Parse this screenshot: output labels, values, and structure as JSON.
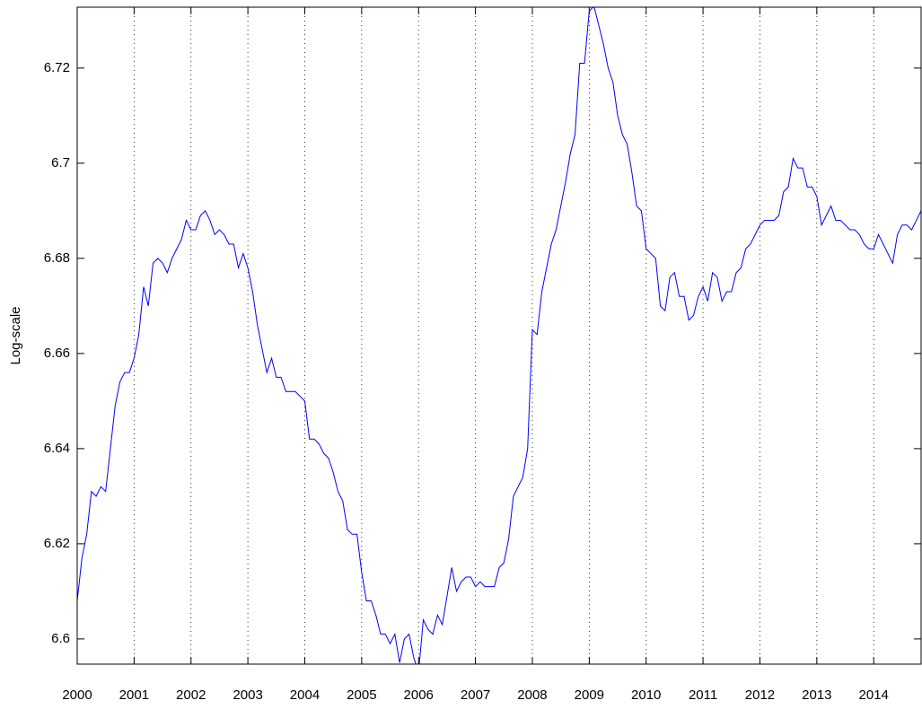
{
  "chart_data": {
    "type": "line",
    "y_label": "Log-scale",
    "x": [
      2000,
      2000.083,
      2000.167,
      2000.25,
      2000.333,
      2000.417,
      2000.5,
      2000.583,
      2000.667,
      2000.75,
      2000.833,
      2000.917,
      2001,
      2001.083,
      2001.167,
      2001.25,
      2001.333,
      2001.417,
      2001.5,
      2001.583,
      2001.667,
      2001.75,
      2001.833,
      2001.917,
      2002,
      2002.083,
      2002.167,
      2002.25,
      2002.333,
      2002.417,
      2002.5,
      2002.583,
      2002.667,
      2002.75,
      2002.833,
      2002.917,
      2003,
      2003.083,
      2003.167,
      2003.25,
      2003.333,
      2003.417,
      2003.5,
      2003.583,
      2003.667,
      2003.75,
      2003.833,
      2003.917,
      2004,
      2004.083,
      2004.167,
      2004.25,
      2004.333,
      2004.417,
      2004.5,
      2004.583,
      2004.667,
      2004.75,
      2004.833,
      2004.917,
      2005,
      2005.083,
      2005.167,
      2005.25,
      2005.333,
      2005.417,
      2005.5,
      2005.583,
      2005.667,
      2005.75,
      2005.833,
      2005.917,
      2006,
      2006.083,
      2006.167,
      2006.25,
      2006.333,
      2006.417,
      2006.5,
      2006.583,
      2006.667,
      2006.75,
      2006.833,
      2006.917,
      2007,
      2007.083,
      2007.167,
      2007.25,
      2007.333,
      2007.417,
      2007.5,
      2007.583,
      2007.667,
      2007.75,
      2007.833,
      2007.917,
      2008,
      2008.083,
      2008.167,
      2008.25,
      2008.333,
      2008.417,
      2008.5,
      2008.583,
      2008.667,
      2008.75,
      2008.833,
      2008.917,
      2009,
      2009.083,
      2009.167,
      2009.25,
      2009.333,
      2009.417,
      2009.5,
      2009.583,
      2009.667,
      2009.75,
      2009.833,
      2009.917,
      2010,
      2010.083,
      2010.167,
      2010.25,
      2010.333,
      2010.417,
      2010.5,
      2010.583,
      2010.667,
      2010.75,
      2010.833,
      2010.917,
      2011,
      2011.083,
      2011.167,
      2011.25,
      2011.333,
      2011.417,
      2011.5,
      2011.583,
      2011.667,
      2011.75,
      2011.833,
      2011.917,
      2012,
      2012.083,
      2012.167,
      2012.25,
      2012.333,
      2012.417,
      2012.5,
      2012.583,
      2012.667,
      2012.75,
      2012.833,
      2012.917,
      2013,
      2013.083,
      2013.167,
      2013.25,
      2013.333,
      2013.417,
      2013.5,
      2013.583,
      2013.667,
      2013.75,
      2013.833,
      2013.917,
      2014,
      2014.083,
      2014.167,
      2014.25,
      2014.333,
      2014.417,
      2014.5,
      2014.583,
      2014.667,
      2014.75,
      2014.833
    ],
    "series": [
      {
        "color": "#0000ff",
        "values": [
          6.608,
          6.617,
          6.622,
          6.631,
          6.63,
          6.632,
          6.631,
          6.64,
          6.649,
          6.654,
          6.656,
          6.656,
          6.659,
          6.664,
          6.674,
          6.67,
          6.679,
          6.68,
          6.679,
          6.677,
          6.68,
          6.682,
          6.684,
          6.688,
          6.686,
          6.686,
          6.689,
          6.69,
          6.688,
          6.685,
          6.686,
          6.685,
          6.683,
          6.683,
          6.678,
          6.681,
          6.678,
          6.673,
          6.666,
          6.661,
          6.656,
          6.659,
          6.655,
          6.655,
          6.652,
          6.652,
          6.652,
          6.651,
          6.65,
          6.642,
          6.642,
          6.641,
          6.639,
          6.638,
          6.635,
          6.631,
          6.629,
          6.623,
          6.622,
          6.622,
          6.614,
          6.608,
          6.608,
          6.605,
          6.601,
          6.601,
          6.599,
          6.601,
          6.595,
          6.6,
          6.601,
          6.596,
          6.593,
          6.604,
          6.602,
          6.601,
          6.605,
          6.603,
          6.609,
          6.615,
          6.61,
          6.612,
          6.613,
          6.613,
          6.611,
          6.612,
          6.611,
          6.611,
          6.611,
          6.615,
          6.616,
          6.621,
          6.63,
          6.632,
          6.634,
          6.64,
          6.665,
          6.664,
          6.673,
          6.678,
          6.683,
          6.686,
          6.691,
          6.696,
          6.702,
          6.706,
          6.721,
          6.721,
          6.732,
          6.733,
          6.729,
          6.725,
          6.72,
          6.717,
          6.71,
          6.706,
          6.704,
          6.698,
          6.691,
          6.69,
          6.682,
          6.681,
          6.68,
          6.67,
          6.669,
          6.676,
          6.677,
          6.672,
          6.672,
          6.667,
          6.668,
          6.672,
          6.674,
          6.671,
          6.677,
          6.676,
          6.671,
          6.673,
          6.673,
          6.677,
          6.678,
          6.682,
          6.683,
          6.685,
          6.687,
          6.688,
          6.688,
          6.688,
          6.689,
          6.694,
          6.695,
          6.701,
          6.699,
          6.699,
          6.695,
          6.695,
          6.693,
          6.687,
          6.689,
          6.691,
          6.688,
          6.688,
          6.687,
          6.686,
          6.686,
          6.685,
          6.683,
          6.682,
          6.682,
          6.685,
          6.683,
          6.681,
          6.679,
          6.685,
          6.687,
          6.687,
          6.686,
          6.688,
          6.69
        ]
      }
    ],
    "xlim": [
      2000,
      2014.833
    ],
    "xticks": [
      2000,
      2001,
      2002,
      2003,
      2004,
      2005,
      2006,
      2007,
      2008,
      2009,
      2010,
      2011,
      2012,
      2013,
      2014
    ],
    "ylim": [
      6.5947,
      6.7328
    ],
    "yticks": [
      6.6,
      6.62,
      6.64,
      6.66,
      6.68,
      6.7,
      6.72
    ],
    "grid": "x"
  }
}
